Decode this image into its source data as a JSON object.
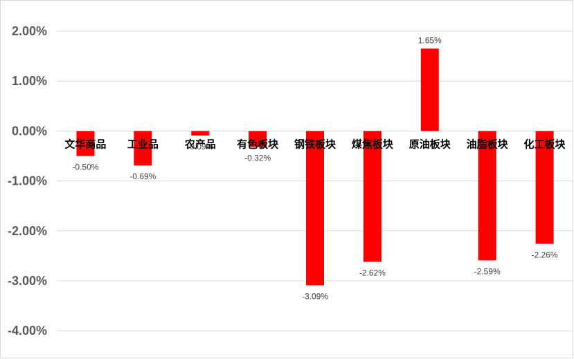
{
  "chart_data": {
    "type": "bar",
    "title": "",
    "xlabel": "",
    "ylabel": "",
    "categories": [
      "文华商品",
      "工业品",
      "农产品",
      "有色板块",
      "钢铁板块",
      "煤焦板块",
      "原油板块",
      "油脂板块",
      "化工板块"
    ],
    "values": [
      -0.5,
      -0.69,
      -0.09,
      -0.32,
      -3.09,
      -2.62,
      1.65,
      -2.59,
      -2.26
    ],
    "data_labels": [
      "-0.50%",
      "-0.69%",
      "-0.09%",
      "-0.32%",
      "-3.09%",
      "-2.62%",
      "1.65%",
      "-2.59%",
      "-2.26%"
    ],
    "ylim": [
      -4,
      2
    ],
    "yticks": [
      2,
      1,
      0,
      -1,
      -2,
      -3,
      -4
    ],
    "ytick_labels": [
      "2.00%",
      "1.00%",
      "0.00%",
      "-1.00%",
      "-2.00%",
      "-3.00%",
      "-4.00%"
    ],
    "grid": true,
    "legend": "none",
    "bar_color": "#ff0000",
    "grid_color": "#d9d9d9",
    "label_color": "#404040"
  }
}
